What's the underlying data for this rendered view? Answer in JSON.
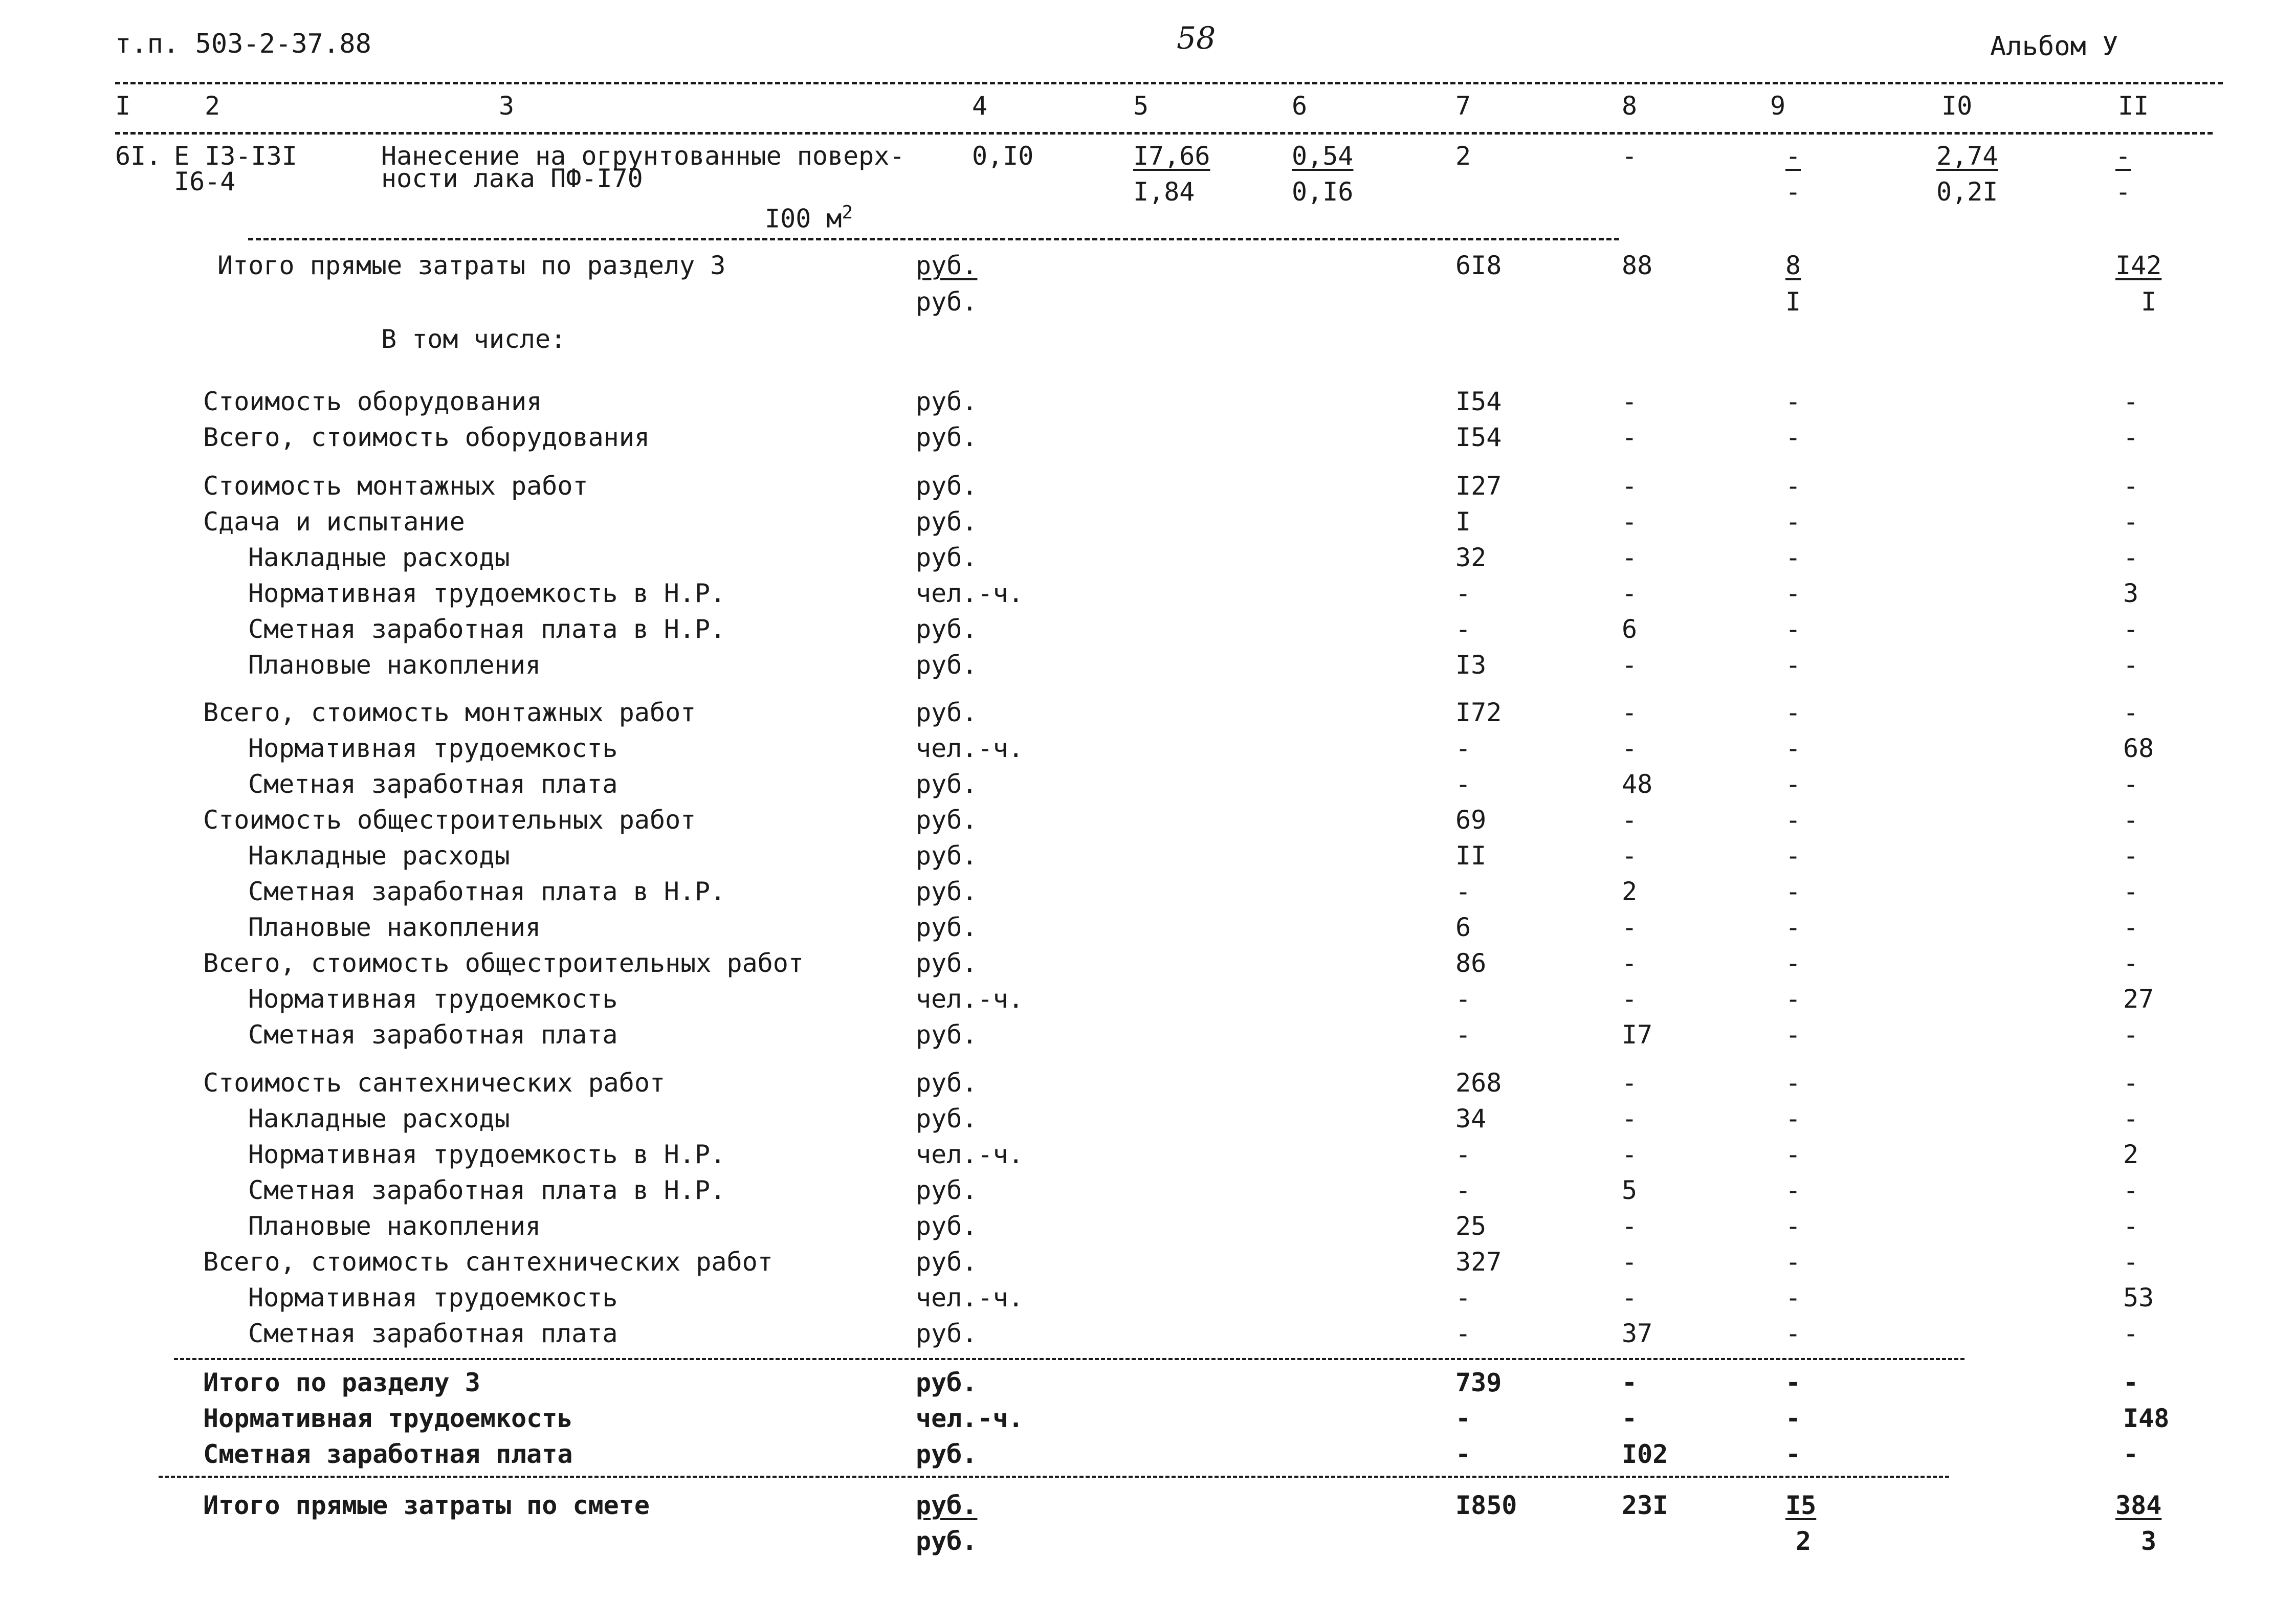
{
  "header": {
    "doc_ref": "т.п. 503-2-37.88",
    "page_number": "58",
    "album": "Альбом У"
  },
  "columns": [
    "I",
    "2",
    "3",
    "4",
    "5",
    "6",
    "7",
    "8",
    "9",
    "I0",
    "II"
  ],
  "item61": {
    "num": "6I.",
    "code1": "Е I3-I3I",
    "code2": "I6-4",
    "desc1": "Нанесение на огрунтованные поверх-",
    "desc2": "ности лака ПФ-I70",
    "unit": "I00 м",
    "unit_sup": "2",
    "qty": "0,I0",
    "c5a": "I7,66",
    "c5b": "I,84",
    "c6a": "0,54",
    "c6b": "0,I6",
    "c7": "2",
    "c8": "-",
    "c9a": "-",
    "c9b": "-",
    "c10a": "2,74",
    "c10b": "0,2I",
    "c11a": "-",
    "c11b": "-"
  },
  "direct3": {
    "label": "Итого прямые затраты по разделу 3",
    "unit1": "руб.",
    "unit2": "руб.",
    "c7": "6I8",
    "c8": "88",
    "c9a": "8",
    "c9b": "I",
    "c11a": "I42",
    "c11b": "I"
  },
  "in_that": "В том числе:",
  "rows": [
    {
      "label": "Стоимость оборудования",
      "unit": "руб.",
      "c7": "I54",
      "c8": "-",
      "c9": "-",
      "c11": "-"
    },
    {
      "label": "Всего, стоимость оборудования",
      "unit": "руб.",
      "c7": "I54",
      "c8": "-",
      "c9": "-",
      "c11": "-"
    },
    {
      "label": "Стоимость монтажных работ",
      "unit": "руб.",
      "c7": "I27",
      "c8": "-",
      "c9": "-",
      "c11": "-"
    },
    {
      "label": "Сдача и испытание",
      "unit": "руб.",
      "c7": "I",
      "c8": "-",
      "c9": "-",
      "c11": "-"
    },
    {
      "label": "Накладные расходы",
      "unit": "руб.",
      "c7": "32",
      "c8": "-",
      "c9": "-",
      "c11": "-"
    },
    {
      "label": "Нормативная трудоемкость в Н.Р.",
      "unit": "чел.-ч.",
      "c7": "-",
      "c8": "-",
      "c9": "-",
      "c11": "3"
    },
    {
      "label": "Сметная заработная плата в Н.Р.",
      "unit": "руб.",
      "c7": "-",
      "c8": "6",
      "c9": "-",
      "c11": "-"
    },
    {
      "label": "Плановые накопления",
      "unit": "руб.",
      "c7": "I3",
      "c8": "-",
      "c9": "-",
      "c11": "-"
    },
    {
      "label": "Всего, стоимость монтажных работ",
      "unit": "руб.",
      "c7": "I72",
      "c8": "-",
      "c9": "-",
      "c11": "-"
    },
    {
      "label": "Нормативная трудоемкость",
      "unit": "чел.-ч.",
      "c7": "-",
      "c8": "-",
      "c9": "-",
      "c11": "68"
    },
    {
      "label": "Сметная заработная плата",
      "unit": "руб.",
      "c7": "-",
      "c8": "48",
      "c9": "-",
      "c11": "-"
    },
    {
      "label": "Стоимость общестроительных работ",
      "unit": "руб.",
      "c7": "69",
      "c8": "-",
      "c9": "-",
      "c11": "-"
    },
    {
      "label": "Накладные расходы",
      "unit": "руб.",
      "c7": "II",
      "c8": "-",
      "c9": "-",
      "c11": "-"
    },
    {
      "label": "Сметная заработная плата в Н.Р.",
      "unit": "руб.",
      "c7": "-",
      "c8": "2",
      "c9": "-",
      "c11": "-"
    },
    {
      "label": "Плановые накопления",
      "unit": "руб.",
      "c7": "6",
      "c8": "-",
      "c9": "-",
      "c11": "-"
    },
    {
      "label": "Всего, стоимость общестроительных работ",
      "unit": "руб.",
      "c7": "86",
      "c8": "-",
      "c9": "-",
      "c11": "-"
    },
    {
      "label": "Нормативная трудоемкость",
      "unit": "чел.-ч.",
      "c7": "-",
      "c8": "-",
      "c9": "-",
      "c11": "27"
    },
    {
      "label": "Сметная заработная плата",
      "unit": "руб.",
      "c7": "-",
      "c8": "I7",
      "c9": "-",
      "c11": "-"
    },
    {
      "label": "Стоимость сантехнических работ",
      "unit": "руб.",
      "c7": "268",
      "c8": "-",
      "c9": "-",
      "c11": "-"
    },
    {
      "label": "Накладные расходы",
      "unit": "руб.",
      "c7": "34",
      "c8": "-",
      "c9": "-",
      "c11": "-"
    },
    {
      "label": "Нормативная трудоемкость в Н.Р.",
      "unit": "чел.-ч.",
      "c7": "-",
      "c8": "-",
      "c9": "-",
      "c11": "2"
    },
    {
      "label": "Сметная заработная плата в Н.Р.",
      "unit": "руб.",
      "c7": "-",
      "c8": "5",
      "c9": "-",
      "c11": "-"
    },
    {
      "label": "Плановые накопления",
      "unit": "руб.",
      "c7": "25",
      "c8": "-",
      "c9": "-",
      "c11": "-"
    },
    {
      "label": "Всего, стоимость сантехнических работ",
      "unit": "руб.",
      "c7": "327",
      "c8": "-",
      "c9": "-",
      "c11": "-"
    },
    {
      "label": "Нормативная трудоемкость",
      "unit": "чел.-ч.",
      "c7": "-",
      "c8": "-",
      "c9": "-",
      "c11": "53"
    },
    {
      "label": "Сметная заработная плата",
      "unit": "руб.",
      "c7": "-",
      "c8": "37",
      "c9": "-",
      "c11": "-"
    },
    {
      "label": "Итого по разделу 3",
      "unit": "руб.",
      "c7": "739",
      "c8": "-",
      "c9": "-",
      "c11": "-"
    },
    {
      "label": "Нормативная трудоемкость",
      "unit": "чел.-ч.",
      "c7": "-",
      "c8": "-",
      "c9": "-",
      "c11": "I48"
    },
    {
      "label": "Сметная заработная плата",
      "unit": "руб.",
      "c7": "-",
      "c8": "I02",
      "c9": "-",
      "c11": "-"
    }
  ],
  "total": {
    "label": "Итого прямые затраты  по смете",
    "unit1": "руб.",
    "unit2": "руб.",
    "c7": "I850",
    "c8": "23I",
    "c9a": "I5",
    "c9b": "2",
    "c11a": "384",
    "c11b": "3"
  }
}
